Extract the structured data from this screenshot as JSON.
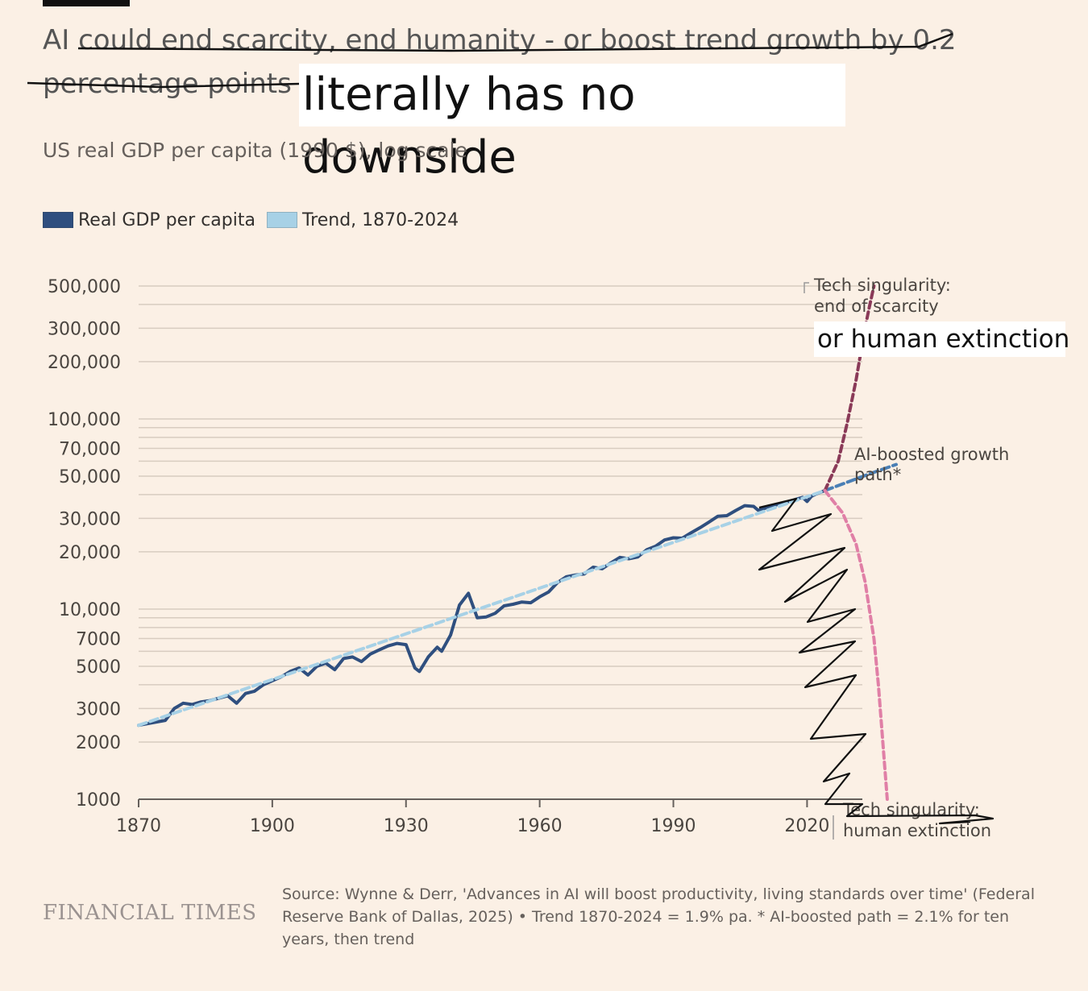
{
  "header": {
    "title_prefix": "AI",
    "title_struck_line1": "could end scarcity, end humanity - or boost trend growth by 0.2",
    "title_struck_line2": "percentage points",
    "overlay_text": "literally has no downside",
    "subtitle": "US real GDP per capita (1990 $), log scale"
  },
  "legend": {
    "gdp_label": "Real GDP per capita",
    "trend_label": "Trend, 1870-2024"
  },
  "annotations": {
    "singularity_scarcity_line1": "Tech singularity:",
    "singularity_scarcity_line2": "end of scarcity",
    "human_extinction_overlay": "or human extinction",
    "ai_boosted_line1": "AI-boosted growth",
    "ai_boosted_line2": "path*",
    "singularity_extinction_line1": "Tech singularity:",
    "singularity_extinction_line2": "human extinction"
  },
  "footer": {
    "brand": "FINANCIAL TIMES",
    "source": "Source: Wynne & Derr, 'Advances in AI will boost productivity, living standards over time' (Federal Reserve Bank of Dallas, 2025) • Trend 1870-2024 = 1.9% pa. * AI-boosted path = 2.1% for ten years, then trend"
  },
  "colors": {
    "background": "#fbf0e5",
    "gdp": "#2f4f7f",
    "trend": "#a7d1e6",
    "ai_boosted": "#4a7fb5",
    "scarcity": "#8a3a58",
    "extinction": "#e07fa6",
    "grid": "#d8ccc0"
  },
  "chart_data": {
    "type": "line",
    "scale": "log",
    "title": "US real GDP per capita (1990 $), log scale",
    "xlim": [
      1870,
      2040
    ],
    "ylim": [
      1000,
      500000
    ],
    "x_ticks": [
      1870,
      1900,
      1930,
      1960,
      1990,
      2020
    ],
    "x_tick_labels": [
      "1870",
      "1900",
      "1930",
      "1960",
      "1990",
      "2020"
    ],
    "y_ticks": [
      1000,
      2000,
      3000,
      5000,
      7000,
      10000,
      20000,
      30000,
      50000,
      70000,
      100000,
      200000,
      300000,
      500000
    ],
    "y_tick_labels": [
      "1000",
      "2000",
      "3000",
      "5000",
      "7000",
      "10,000",
      "20,000",
      "30,000",
      "50,000",
      "70,000",
      "100,000",
      "200,000",
      "300,000",
      "500,000"
    ],
    "gridlines_y": [
      1000,
      2000,
      3000,
      4000,
      5000,
      6000,
      7000,
      8000,
      9000,
      10000,
      20000,
      30000,
      40000,
      50000,
      60000,
      70000,
      80000,
      90000,
      100000,
      200000,
      300000,
      400000,
      500000
    ],
    "series": [
      {
        "name": "Real GDP per capita",
        "style": "solid",
        "x": [
          1870,
          1872,
          1874,
          1876,
          1878,
          1880,
          1882,
          1884,
          1886,
          1888,
          1890,
          1892,
          1894,
          1896,
          1898,
          1900,
          1902,
          1904,
          1906,
          1908,
          1910,
          1912,
          1914,
          1916,
          1918,
          1920,
          1922,
          1924,
          1926,
          1928,
          1930,
          1932,
          1933,
          1935,
          1937,
          1938,
          1940,
          1942,
          1944,
          1946,
          1948,
          1950,
          1952,
          1954,
          1956,
          1958,
          1960,
          1962,
          1964,
          1966,
          1968,
          1970,
          1972,
          1974,
          1976,
          1978,
          1980,
          1982,
          1984,
          1986,
          1988,
          1990,
          1992,
          1994,
          1996,
          1998,
          2000,
          2002,
          2004,
          2006,
          2008,
          2009,
          2010,
          2012,
          2014,
          2016,
          2018,
          2019,
          2020,
          2021,
          2022,
          2024
        ],
        "values": [
          2450,
          2500,
          2550,
          2600,
          3000,
          3200,
          3150,
          3250,
          3300,
          3400,
          3500,
          3200,
          3600,
          3700,
          4000,
          4200,
          4400,
          4700,
          4900,
          4500,
          5000,
          5200,
          4800,
          5500,
          5600,
          5300,
          5800,
          6100,
          6400,
          6600,
          6500,
          4900,
          4700,
          5600,
          6300,
          6000,
          7300,
          10500,
          12100,
          9000,
          9100,
          9500,
          10400,
          10600,
          10900,
          10800,
          11600,
          12300,
          13800,
          14800,
          15100,
          15300,
          16600,
          16300,
          17500,
          18700,
          18400,
          18800,
          20500,
          21400,
          23100,
          23700,
          23600,
          25200,
          26800,
          28700,
          30800,
          31000,
          33000,
          35000,
          34700,
          33100,
          33600,
          34800,
          35800,
          36900,
          38100,
          38700,
          36800,
          39200,
          40300,
          42000
        ]
      },
      {
        "name": "Trend, 1870-2024",
        "style": "dashed",
        "x": [
          1870,
          2024
        ],
        "values": [
          2450,
          42000
        ]
      },
      {
        "name": "AI-boosted growth path*",
        "style": "dashed",
        "x": [
          2024,
          2030,
          2034,
          2040
        ],
        "values": [
          42000,
          47400,
          51400,
          57600
        ]
      },
      {
        "name": "Tech singularity: end of scarcity",
        "style": "dashed",
        "x": [
          2024,
          2027,
          2029,
          2031,
          2032,
          2033,
          2034,
          2035
        ],
        "values": [
          42000,
          60000,
          95000,
          160000,
          220000,
          300000,
          390000,
          500000
        ]
      },
      {
        "name": "Tech singularity: human extinction",
        "style": "dashed",
        "x": [
          2024,
          2028,
          2031,
          2033,
          2035,
          2036,
          2037,
          2038
        ],
        "values": [
          42000,
          32000,
          22000,
          14000,
          7000,
          4000,
          2000,
          1000
        ]
      }
    ]
  }
}
